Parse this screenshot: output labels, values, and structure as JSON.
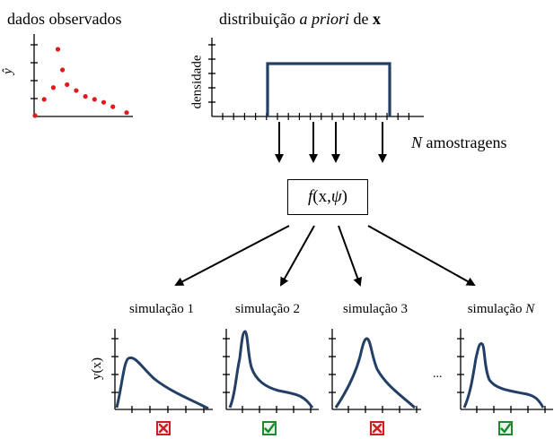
{
  "observed": {
    "title": "dados observados",
    "ylabel": "ŷ",
    "points": [
      [
        0.0,
        0.0
      ],
      [
        1.0,
        0.55
      ],
      [
        2.0,
        0.95
      ],
      [
        2.5,
        2.25
      ],
      [
        3.0,
        1.55
      ],
      [
        3.5,
        1.05
      ],
      [
        4.5,
        0.85
      ],
      [
        5.5,
        0.65
      ],
      [
        6.5,
        0.55
      ],
      [
        7.5,
        0.45
      ],
      [
        8.5,
        0.3
      ],
      [
        10.0,
        0.1
      ]
    ],
    "color": "#e01b1b"
  },
  "prior": {
    "title_prefix": "distribuição ",
    "title_italic": "a priori",
    "title_mid": " de ",
    "title_bold": "x",
    "ylabel": "densidade",
    "color": "#233f66"
  },
  "sampling": {
    "n": "N",
    "label": " amostragens"
  },
  "function": {
    "f": "f",
    "args_open": " (x,",
    "psi": "ψ",
    "args_close": ")"
  },
  "simulations": [
    {
      "label": "simulação 1",
      "label_n": "",
      "result": "reject"
    },
    {
      "label": "simulação 2",
      "label_n": "",
      "result": "accept"
    },
    {
      "label": "simulação 3",
      "label_n": "",
      "result": "reject"
    },
    {
      "label": "simulação ",
      "label_n": "N",
      "result": "accept"
    }
  ],
  "sim_ylabel": "y(x)",
  "ellipsis": "...",
  "colors": {
    "curve": "#233f66",
    "reject": "#cc1f1f",
    "accept": "#1e8a2e",
    "axis": "#000000"
  }
}
